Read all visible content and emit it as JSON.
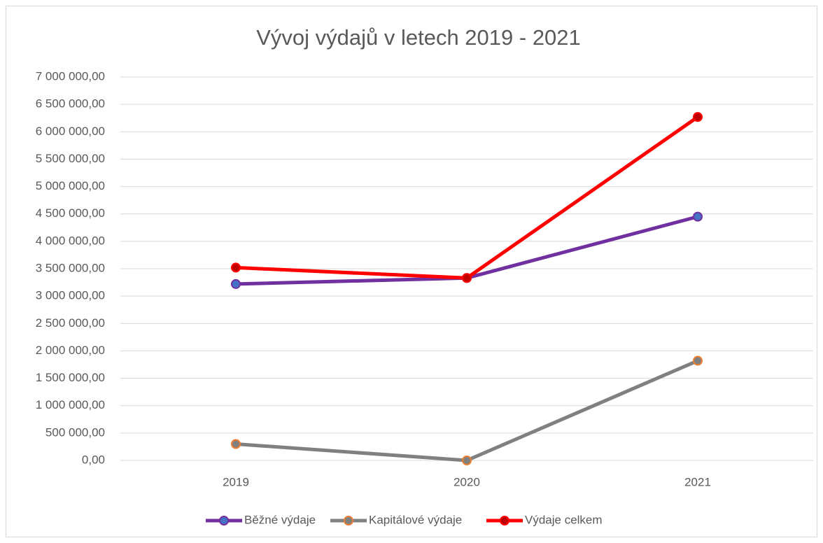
{
  "chart_data": {
    "type": "line",
    "title": "Vývoj výdajů v letech 2019 - 2021",
    "categories": [
      "2019",
      "2020",
      "2021"
    ],
    "series": [
      {
        "name": "Běžné výdaje",
        "color": "#7030a0",
        "marker_color": "#4472c4",
        "values": [
          3220000,
          3330000,
          4450000
        ]
      },
      {
        "name": "Kapitálové výdaje",
        "color": "#808080",
        "marker_color": "#ed7d31",
        "values": [
          300000,
          0,
          1820000
        ]
      },
      {
        "name": "Výdaje celkem",
        "color": "#ff0000",
        "marker_color": "#c00000",
        "values": [
          3520000,
          3330000,
          6270000
        ]
      }
    ],
    "ylim": [
      0,
      7000000
    ],
    "yticks": [
      {
        "value": 0,
        "label": "0,00"
      },
      {
        "value": 500000,
        "label": "500 000,00"
      },
      {
        "value": 1000000,
        "label": "1 000 000,00"
      },
      {
        "value": 1500000,
        "label": "1 500 000,00"
      },
      {
        "value": 2000000,
        "label": "2 000 000,00"
      },
      {
        "value": 2500000,
        "label": "2 500 000,00"
      },
      {
        "value": 3000000,
        "label": "3 000 000,00"
      },
      {
        "value": 3500000,
        "label": "3 500 000,00"
      },
      {
        "value": 4000000,
        "label": "4 000 000,00"
      },
      {
        "value": 4500000,
        "label": "4 500 000,00"
      },
      {
        "value": 5000000,
        "label": "5 000 000,00"
      },
      {
        "value": 5500000,
        "label": "5 500 000,00"
      },
      {
        "value": 6000000,
        "label": "6 000 000,00"
      },
      {
        "value": 6500000,
        "label": "6 500 000,00"
      },
      {
        "value": 7000000,
        "label": "7 000 000,00"
      }
    ],
    "grid": true,
    "legend": "bottom"
  }
}
